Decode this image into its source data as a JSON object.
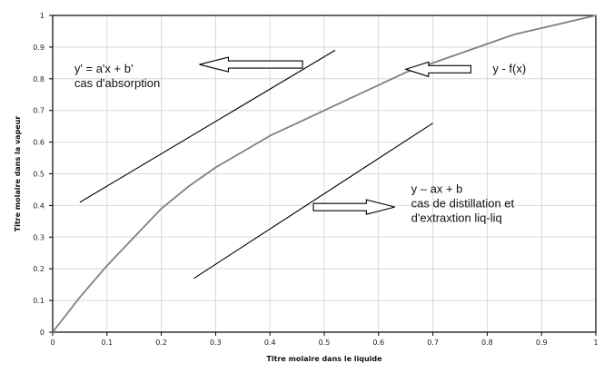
{
  "chart_data": {
    "type": "line",
    "xlabel": "Titre molaire dans le liquide",
    "ylabel": "Titre molaire dans la vapeur",
    "xlim": [
      0,
      1
    ],
    "ylim": [
      0,
      1
    ],
    "grid": true,
    "xticks": [
      "0",
      "0.1",
      "0.2",
      "0.3",
      "0.4",
      "0.5",
      "0.6",
      "0.7",
      "0.8",
      "0.9",
      "1"
    ],
    "yticks": [
      "0",
      "0.1",
      "0.2",
      "0.3",
      "0.4",
      "0.5",
      "0.6",
      "0.7",
      "0.8",
      "0.9",
      "1"
    ],
    "series": [
      {
        "kind": "curve",
        "color": "#808080",
        "x": [
          0,
          0.05,
          0.1,
          0.15,
          0.2,
          0.25,
          0.3,
          0.35,
          0.4,
          0.45,
          0.5,
          0.55,
          0.6,
          0.65,
          0.7,
          0.75,
          0.8,
          0.85,
          0.9,
          0.95,
          1
        ],
        "y": [
          0,
          0.11,
          0.21,
          0.3,
          0.39,
          0.46,
          0.52,
          0.57,
          0.62,
          0.66,
          0.7,
          0.74,
          0.78,
          0.82,
          0.85,
          0.88,
          0.91,
          0.94,
          0.96,
          0.98,
          1
        ]
      },
      {
        "kind": "line",
        "color": "#000000",
        "x": [
          0.05,
          0.52
        ],
        "y": [
          0.41,
          0.89
        ]
      },
      {
        "kind": "line",
        "color": "#000000",
        "x": [
          0.26,
          0.7
        ],
        "y": [
          0.17,
          0.66
        ]
      }
    ],
    "annotations": [
      {
        "lines": [
          "y' = a'x + b'",
          "cas d'absorption"
        ],
        "x": 0.04,
        "y": 0.82,
        "arrow": {
          "from": [
            0.46,
            0.845
          ],
          "to": [
            0.27,
            0.845
          ]
        }
      },
      {
        "lines": [
          "y - f(x)"
        ],
        "x": 0.81,
        "y": 0.82,
        "arrow": {
          "from": [
            0.77,
            0.83
          ],
          "to": [
            0.65,
            0.83
          ]
        }
      },
      {
        "lines": [
          "y – ax + b",
          "cas de distillation et",
          "d'extraxtion liq-liq"
        ],
        "x": 0.66,
        "y": 0.44,
        "arrow": {
          "from": [
            0.48,
            0.395
          ],
          "to": [
            0.63,
            0.395
          ]
        }
      }
    ]
  }
}
